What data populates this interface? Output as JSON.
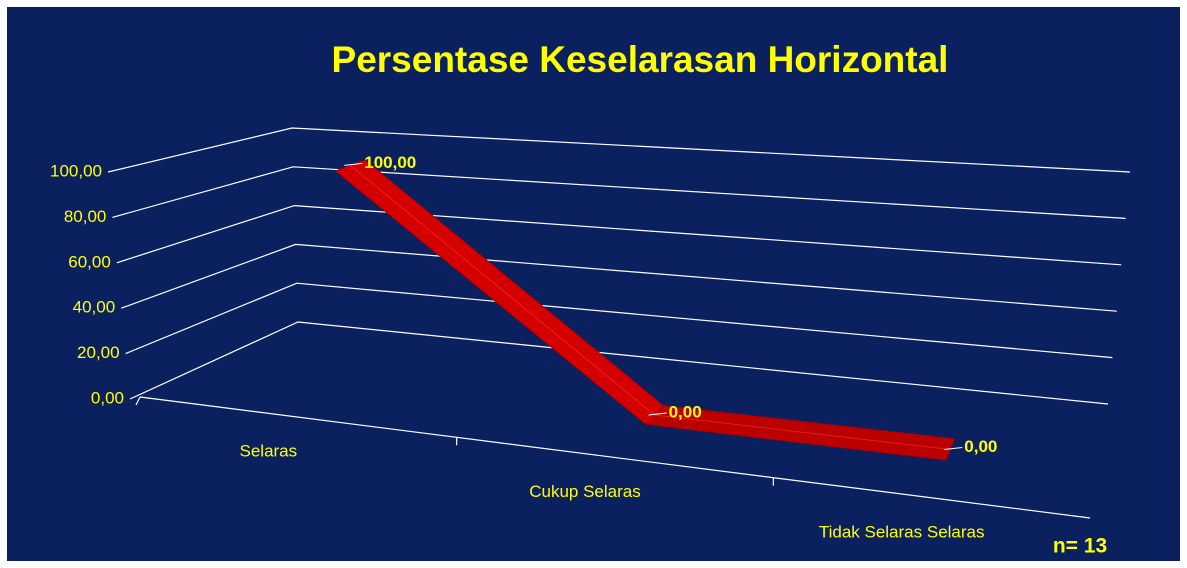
{
  "chart_data": {
    "type": "line3d",
    "title": "Persentase Keselarasan Horizontal",
    "categories": [
      "Selaras",
      "Cukup Selaras",
      "Tidak Selaras Selaras"
    ],
    "values": [
      100,
      0,
      0
    ],
    "value_labels": [
      "100,00",
      "0,00",
      "0,00"
    ],
    "color": "#d40000",
    "ylim": [
      0,
      100
    ],
    "yticks": [
      {
        "value": 0,
        "label": "0,00"
      },
      {
        "value": 20,
        "label": "20,00"
      },
      {
        "value": 40,
        "label": "40,00"
      },
      {
        "value": 60,
        "label": "60,00"
      },
      {
        "value": 80,
        "label": "80,00"
      },
      {
        "value": 100,
        "label": "100,00"
      }
    ],
    "grid": true,
    "annotation": "n= 13"
  }
}
